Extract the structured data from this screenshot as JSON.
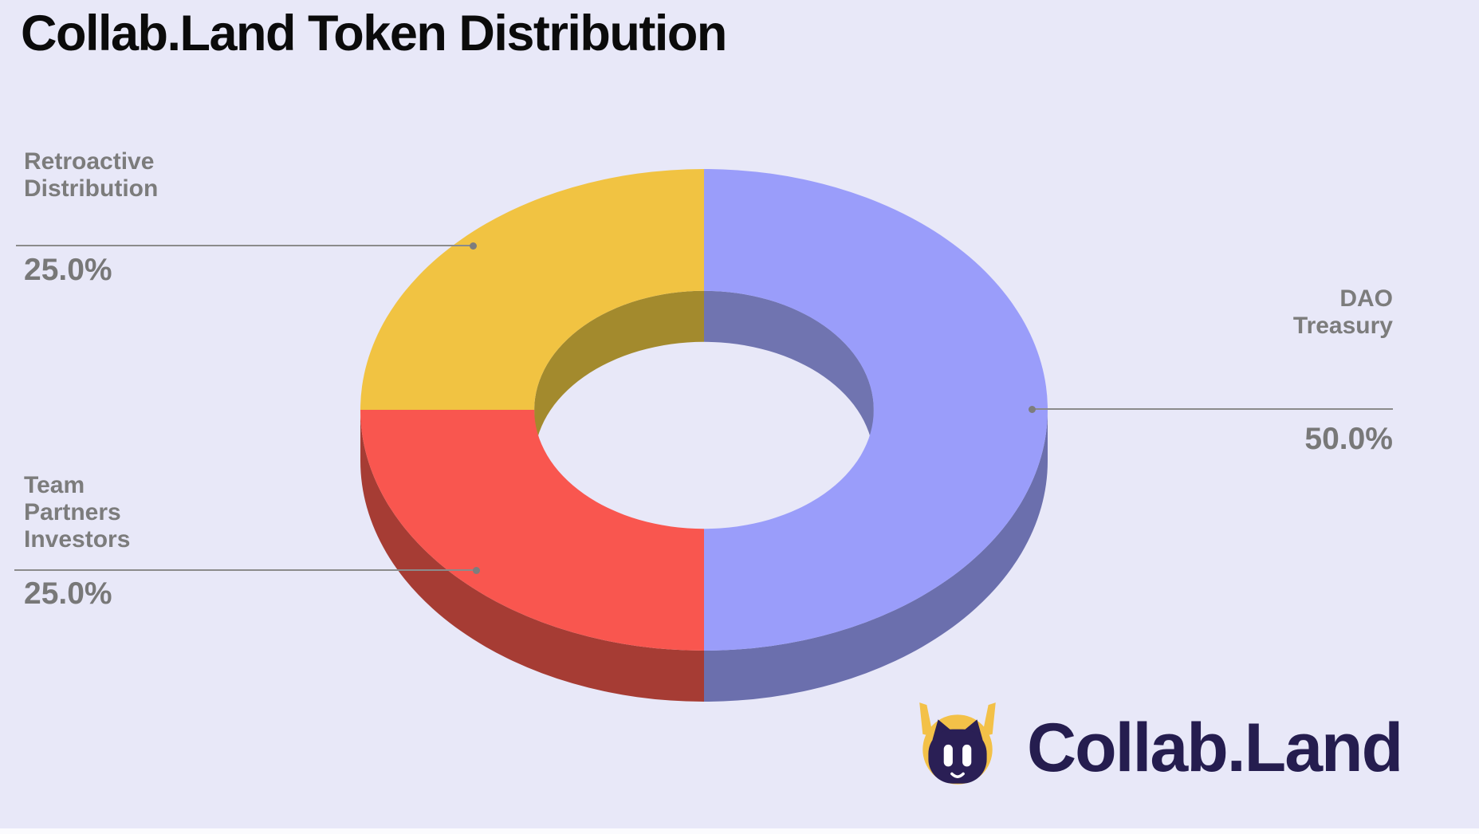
{
  "page": {
    "background": "#e8e8f8"
  },
  "chart_data": {
    "type": "pie",
    "variant": "3d-donut",
    "title": "Collab.Land Token Distribution",
    "hole_ratio": 0.494,
    "start_angle_deg": 0,
    "direction": "clockwise",
    "legend_position": "callout-labels",
    "slices": [
      {
        "label": "DAO Treasury",
        "label_lines": [
          "DAO",
          "Treasury"
        ],
        "value": 50.0,
        "pct_label": "50.0%",
        "top_color": "#9a9dfa",
        "side_color": "#6b6fad",
        "inner_wall_color": "#7074b0"
      },
      {
        "label": "Team Partners Investors",
        "label_lines": [
          "Team",
          "Partners",
          "Investors"
        ],
        "value": 25.0,
        "pct_label": "25.0%",
        "top_color": "#f9564f",
        "side_color": "#a63c34",
        "inner_wall_color": "#a63c34"
      },
      {
        "label": "Retroactive Distribution",
        "label_lines": [
          "Retroactive",
          "Distribution"
        ],
        "value": 25.0,
        "pct_label": "25.0%",
        "top_color": "#f1c342",
        "side_color": "#a38a2d",
        "inner_wall_color": "#a38a2d"
      }
    ]
  },
  "logo": {
    "text": "Collab.Land",
    "mascot_icon": "collabland-robot-mascot",
    "text_color": "#251d4f",
    "mascot_yellow": "#f3c148",
    "mascot_purple": "#2a1f55"
  }
}
